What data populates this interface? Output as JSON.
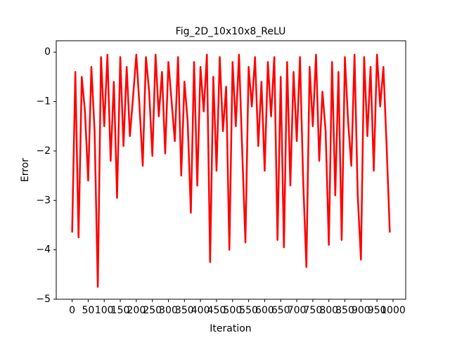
{
  "chart_data": {
    "type": "line",
    "title": "Fig_2D_10x10x8_ReLU",
    "xlabel": "Iteration",
    "ylabel": "Error",
    "x": [
      0,
      10,
      20,
      30,
      40,
      50,
      60,
      70,
      80,
      90,
      100,
      110,
      120,
      130,
      140,
      150,
      160,
      170,
      180,
      190,
      200,
      210,
      220,
      230,
      240,
      250,
      260,
      270,
      280,
      290,
      300,
      310,
      320,
      330,
      340,
      350,
      360,
      370,
      380,
      390,
      400,
      410,
      420,
      430,
      440,
      450,
      460,
      470,
      480,
      490,
      500,
      510,
      520,
      530,
      540,
      550,
      560,
      570,
      580,
      590,
      600,
      610,
      620,
      630,
      640,
      650,
      660,
      670,
      680,
      690,
      700,
      710,
      720,
      730,
      740,
      750,
      760,
      770,
      780,
      790,
      800,
      810,
      820,
      830,
      840,
      850,
      860,
      870,
      880,
      890,
      900,
      910,
      920,
      930,
      940,
      950,
      960,
      970,
      980,
      990
    ],
    "series": [
      {
        "color": "#ff0000",
        "values": [
          -3.65,
          -0.4,
          -3.75,
          -0.5,
          -1.2,
          -2.6,
          -0.3,
          -1.6,
          -4.75,
          -0.1,
          -1.5,
          -0.05,
          -2.2,
          -0.6,
          -2.95,
          -0.1,
          -1.9,
          -0.3,
          -1.7,
          -0.9,
          -0.05,
          -1.1,
          -2.3,
          -0.1,
          -0.8,
          -2.1,
          -0.05,
          -1.3,
          -0.4,
          -2.05,
          -0.2,
          -1.0,
          -1.8,
          -0.1,
          -2.5,
          -0.6,
          -1.4,
          -3.25,
          -0.2,
          -2.7,
          -0.3,
          -1.2,
          -0.05,
          -4.25,
          -0.5,
          -2.4,
          -0.1,
          -1.6,
          -0.7,
          -4.0,
          -0.2,
          -1.5,
          -0.05,
          -2.0,
          -3.85,
          -0.3,
          -1.1,
          -0.1,
          -1.9,
          -0.6,
          -2.4,
          -0.2,
          -1.3,
          -0.1,
          -3.8,
          -0.5,
          -3.95,
          -0.2,
          -2.7,
          -0.4,
          -1.8,
          -0.1,
          -2.6,
          -4.35,
          -0.3,
          -1.5,
          -0.05,
          -2.2,
          -0.8,
          -1.6,
          -3.9,
          -0.2,
          -2.9,
          -0.4,
          -3.8,
          -0.1,
          -1.4,
          -2.3,
          -0.05,
          -2.9,
          -4.2,
          -0.1,
          -1.7,
          -0.3,
          -2.4,
          -0.05,
          -1.1,
          -0.3,
          -1.9,
          -3.65
        ]
      }
    ],
    "xlim": [
      -49.5,
      1039.5
    ],
    "ylim": [
      -5.0,
      0.23
    ],
    "xticks": [
      0,
      50,
      100,
      150,
      200,
      250,
      300,
      350,
      400,
      450,
      500,
      550,
      600,
      650,
      700,
      750,
      800,
      850,
      900,
      950,
      1000
    ],
    "yticks": [
      {
        "value": -5,
        "label": "−5"
      },
      {
        "value": -4,
        "label": "−4"
      },
      {
        "value": -3,
        "label": "−3"
      },
      {
        "value": -2,
        "label": "−2"
      },
      {
        "value": -1,
        "label": "−1"
      },
      0
    ]
  }
}
